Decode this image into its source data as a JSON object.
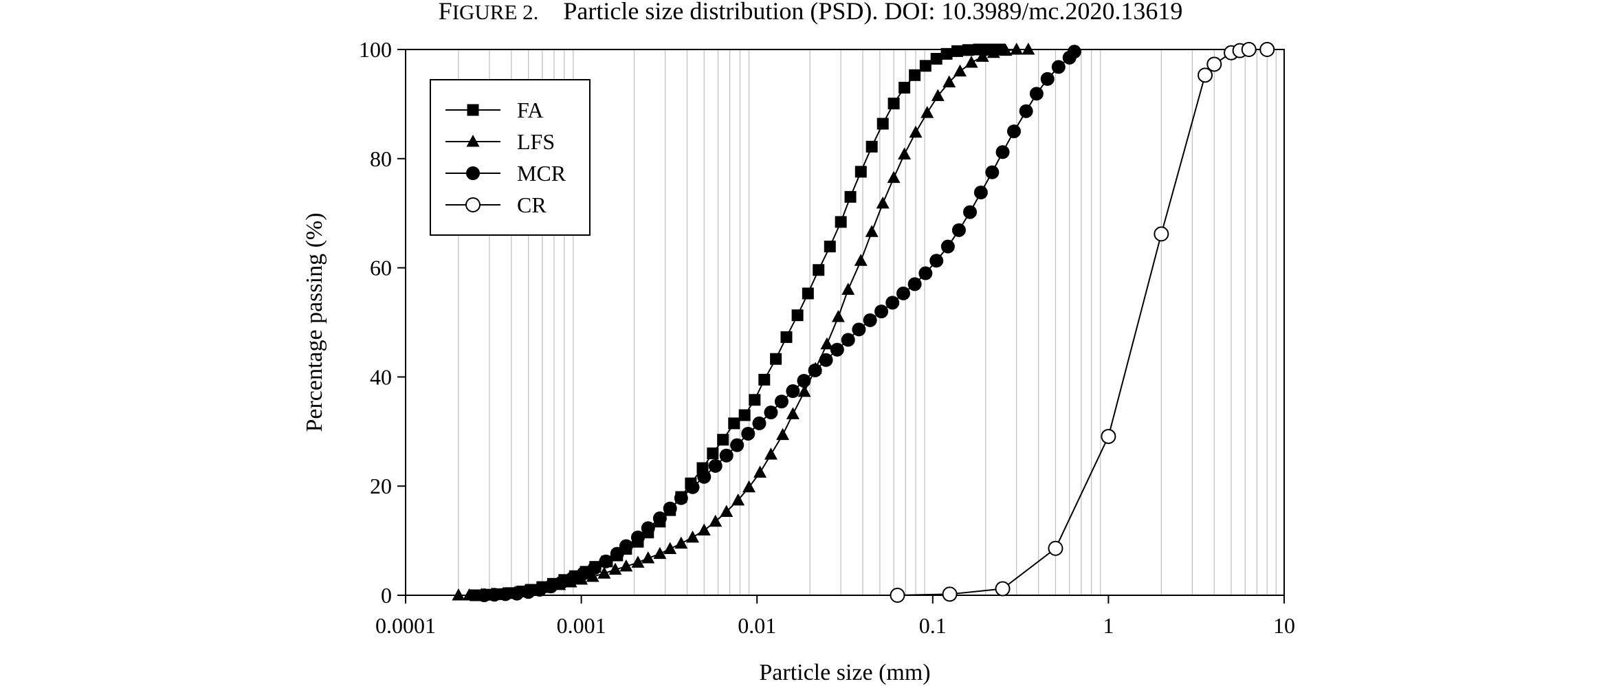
{
  "caption": {
    "label_first": "F",
    "label_rest": "IGURE 2.",
    "text": "Particle size distribution (PSD). DOI: 10.3989/mc.2020.13619"
  },
  "chart_data": {
    "type": "scatter",
    "xlabel": "Particle size (mm)",
    "ylabel": "Percentage passing (%)",
    "xscale": "log",
    "xlim": [
      0.0001,
      10
    ],
    "ylim": [
      0,
      100
    ],
    "x_ticks": [
      {
        "value": 0.0001,
        "label": "0.0001"
      },
      {
        "value": 0.001,
        "label": "0.001"
      },
      {
        "value": 0.01,
        "label": "0.01"
      },
      {
        "value": 0.1,
        "label": "0.1"
      },
      {
        "value": 1,
        "label": "1"
      },
      {
        "value": 10,
        "label": "10"
      }
    ],
    "y_ticks": [
      {
        "value": 0,
        "label": "0"
      },
      {
        "value": 20,
        "label": "20"
      },
      {
        "value": 40,
        "label": "40"
      },
      {
        "value": 60,
        "label": "60"
      },
      {
        "value": 80,
        "label": "80"
      },
      {
        "value": 100,
        "label": "100"
      }
    ],
    "grid": "vertical minor gridlines",
    "legend_position": "top-left",
    "series": [
      {
        "name": "FA",
        "marker": "square-filled",
        "x": [
          0.00025,
          0.0003,
          0.00035,
          0.0004,
          0.00046,
          0.00052,
          0.0006,
          0.00069,
          0.0008,
          0.00092,
          0.00106,
          0.0012,
          0.0014,
          0.0016,
          0.0018,
          0.0021,
          0.0024,
          0.0028,
          0.0032,
          0.0037,
          0.0042,
          0.0049,
          0.0056,
          0.0064,
          0.0074,
          0.0085,
          0.0097,
          0.011,
          0.0128,
          0.0147,
          0.017,
          0.0195,
          0.0224,
          0.026,
          0.03,
          0.034,
          0.039,
          0.045,
          0.052,
          0.06,
          0.069,
          0.079,
          0.091,
          0.105,
          0.12,
          0.138,
          0.159,
          0.183,
          0.21,
          0.24
        ],
        "y": [
          0.0,
          0.1,
          0.2,
          0.4,
          0.7,
          1.0,
          1.5,
          2.1,
          2.8,
          3.5,
          4.3,
          5.2,
          6.2,
          7.3,
          8.5,
          9.8,
          11.5,
          13.5,
          15.6,
          18.0,
          20.5,
          23.3,
          26.0,
          28.5,
          31.5,
          33.0,
          35.8,
          39.5,
          43.3,
          47.3,
          51.3,
          55.3,
          59.6,
          63.9,
          68.4,
          73.0,
          77.6,
          82.2,
          86.4,
          90.1,
          93.0,
          95.3,
          97.0,
          98.3,
          99.2,
          99.7,
          99.9,
          100.0,
          100.0,
          100.0
        ]
      },
      {
        "name": "LFS",
        "marker": "triangle-filled",
        "x": [
          0.0002,
          0.00023,
          0.00027,
          0.00031,
          0.00036,
          0.00042,
          0.00048,
          0.00056,
          0.00065,
          0.00075,
          0.00087,
          0.001,
          0.00116,
          0.00135,
          0.00156,
          0.0018,
          0.0021,
          0.0024,
          0.0028,
          0.0032,
          0.0037,
          0.0043,
          0.005,
          0.0058,
          0.0067,
          0.0078,
          0.009,
          0.0104,
          0.012,
          0.014,
          0.016,
          0.0186,
          0.0215,
          0.025,
          0.029,
          0.033,
          0.039,
          0.045,
          0.052,
          0.06,
          0.069,
          0.08,
          0.093,
          0.107,
          0.124,
          0.143,
          0.166,
          0.192,
          0.222,
          0.26,
          0.3,
          0.35
        ],
        "y": [
          0.0,
          0.0,
          0.1,
          0.2,
          0.3,
          0.5,
          0.8,
          1.1,
          1.5,
          1.9,
          2.4,
          2.9,
          3.4,
          4.0,
          4.7,
          5.3,
          6.0,
          6.8,
          7.6,
          8.5,
          9.5,
          10.6,
          11.9,
          13.5,
          15.3,
          17.4,
          19.8,
          22.5,
          25.8,
          29.4,
          33.2,
          37.3,
          41.5,
          46.0,
          51.0,
          56.0,
          61.3,
          66.6,
          71.8,
          76.5,
          80.8,
          84.8,
          88.4,
          91.5,
          94.0,
          96.0,
          97.6,
          98.7,
          99.4,
          99.8,
          100.0,
          100.0
        ]
      },
      {
        "name": "MCR",
        "marker": "circle-filled",
        "x": [
          0.00028,
          0.00032,
          0.00037,
          0.00043,
          0.0005,
          0.00058,
          0.00067,
          0.00077,
          0.00089,
          0.00103,
          0.00119,
          0.00138,
          0.0016,
          0.0018,
          0.0021,
          0.0024,
          0.0028,
          0.0032,
          0.0037,
          0.0043,
          0.005,
          0.0058,
          0.0067,
          0.0077,
          0.0089,
          0.0103,
          0.012,
          0.0138,
          0.016,
          0.0185,
          0.0214,
          0.0247,
          0.0286,
          0.033,
          0.038,
          0.044,
          0.051,
          0.059,
          0.068,
          0.079,
          0.091,
          0.105,
          0.122,
          0.141,
          0.163,
          0.188,
          0.218,
          0.25,
          0.29,
          0.34,
          0.39,
          0.45,
          0.52,
          0.6,
          0.64
        ],
        "y": [
          0.0,
          0.1,
          0.2,
          0.3,
          0.6,
          1.0,
          1.6,
          2.3,
          3.1,
          4.0,
          5.0,
          6.2,
          7.6,
          9.0,
          10.6,
          12.3,
          14.1,
          15.9,
          17.8,
          19.8,
          21.7,
          23.7,
          25.6,
          27.5,
          29.6,
          31.5,
          33.5,
          35.5,
          37.4,
          39.3,
          41.2,
          43.1,
          45.0,
          46.8,
          48.7,
          50.4,
          52.0,
          53.6,
          55.3,
          57.0,
          59.0,
          61.3,
          63.9,
          66.9,
          70.2,
          73.8,
          77.5,
          81.2,
          85.0,
          88.7,
          91.9,
          94.6,
          96.8,
          98.5,
          99.6
        ]
      },
      {
        "name": "CR",
        "marker": "circle-open",
        "x": [
          0.063,
          0.125,
          0.25,
          0.5,
          1,
          2,
          3.55,
          4,
          5,
          5.6,
          6.3,
          8
        ],
        "y": [
          0.0,
          0.2,
          1.2,
          8.6,
          29.1,
          66.2,
          95.3,
          97.3,
          99.4,
          99.8,
          100.0,
          100.0
        ]
      }
    ]
  }
}
